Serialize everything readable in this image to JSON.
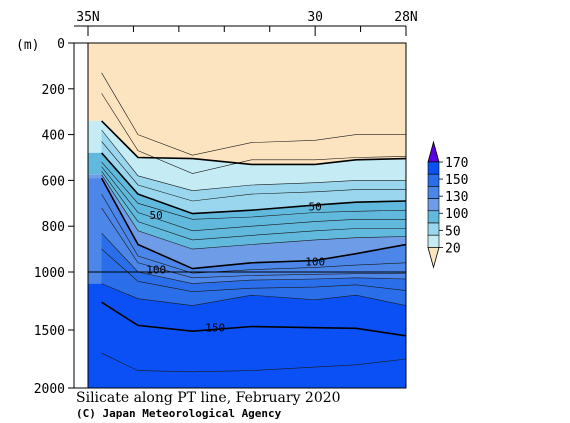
{
  "chart_data": {
    "type": "heatmap",
    "title": "Silicate along PT line, February 2020",
    "credit": "(C) Japan Meteorological Agency",
    "ylabel": "(m)",
    "x_ticks": [
      "35N",
      "30",
      "28N"
    ],
    "x_tick_values": [
      35,
      30,
      28
    ],
    "xlim": [
      35,
      28
    ],
    "y_ticks": [
      "0",
      "200",
      "400",
      "600",
      "800",
      "1000",
      "1500",
      "2000"
    ],
    "y_tick_values": [
      0,
      200,
      400,
      600,
      800,
      1000,
      1500,
      2000
    ],
    "ylim": [
      0,
      2000
    ],
    "y_scale": "linear 0-1000 m, compressed 1000-2000 m",
    "stations_lat": [
      34.7,
      33.9,
      32.7,
      31.4,
      30.0,
      29.1,
      28.0
    ],
    "levels": [
      20,
      50,
      100,
      130,
      150,
      170
    ],
    "colorbar": {
      "labels": [
        "170",
        "150",
        "130",
        "100",
        "50",
        "20"
      ],
      "bands": [
        "#5a00e0",
        "#0a50f5",
        "#2a6eea",
        "#4c86e8",
        "#6f9ce6",
        "#62b9de",
        "#9ad7ee",
        "#c5ecf5",
        "#fce4c0"
      ],
      "colors": {
        "below_20": "#fce4c0",
        "max": "#5a00e0"
      }
    },
    "contour_labels": [
      {
        "text": "50",
        "lat": 33.5,
        "depth": 750
      },
      {
        "text": "50",
        "lat": 30.0,
        "depth": 715
      },
      {
        "text": "100",
        "lat": 33.5,
        "depth": 990
      },
      {
        "text": "100",
        "lat": 30.0,
        "depth": 955
      },
      {
        "text": "150",
        "lat": 32.2,
        "depth": 1480
      }
    ],
    "bold_contours": [
      {
        "value": 20,
        "depth": [
          340,
          500,
          505,
          530,
          530,
          510,
          505
        ]
      },
      {
        "value": 50,
        "depth": [
          480,
          660,
          745,
          730,
          708,
          695,
          690
        ]
      },
      {
        "value": 100,
        "depth": [
          590,
          880,
          985,
          960,
          950,
          920,
          880
        ]
      },
      {
        "value": 150,
        "depth": [
          1260,
          1460,
          1510,
          1470,
          1480,
          1485,
          1550
        ]
      }
    ],
    "thin_contours": [
      {
        "depth": [
          130,
          400,
          490,
          435,
          425,
          400,
          400
        ]
      },
      {
        "depth": [
          220,
          470,
          570,
          510,
          510,
          500,
          495
        ]
      },
      {
        "depth": [
          380,
          580,
          645,
          620,
          610,
          600,
          600
        ]
      },
      {
        "depth": [
          430,
          620,
          690,
          660,
          650,
          640,
          640
        ]
      },
      {
        "depth": [
          520,
          700,
          770,
          760,
          740,
          735,
          730
        ]
      },
      {
        "depth": [
          540,
          740,
          820,
          800,
          780,
          770,
          770
        ]
      },
      {
        "depth": [
          560,
          780,
          860,
          840,
          820,
          810,
          810
        ]
      },
      {
        "depth": [
          575,
          820,
          900,
          880,
          860,
          850,
          845
        ]
      },
      {
        "depth": [
          660,
          930,
          1010,
          990,
          980,
          970,
          960
        ]
      },
      {
        "depth": [
          720,
          960,
          1050,
          1030,
          1020,
          1015,
          1010
        ]
      },
      {
        "depth": [
          830,
          1000,
          1100,
          1070,
          1060,
          1050,
          1060
        ]
      },
      {
        "depth": [
          900,
          1080,
          1170,
          1140,
          1130,
          1110,
          1160
        ]
      },
      {
        "depth": [
          1100,
          1230,
          1290,
          1200,
          1240,
          1200,
          1290
        ]
      },
      {
        "depth": [
          1700,
          1850,
          1860,
          1850,
          1820,
          1800,
          1750
        ]
      }
    ]
  }
}
